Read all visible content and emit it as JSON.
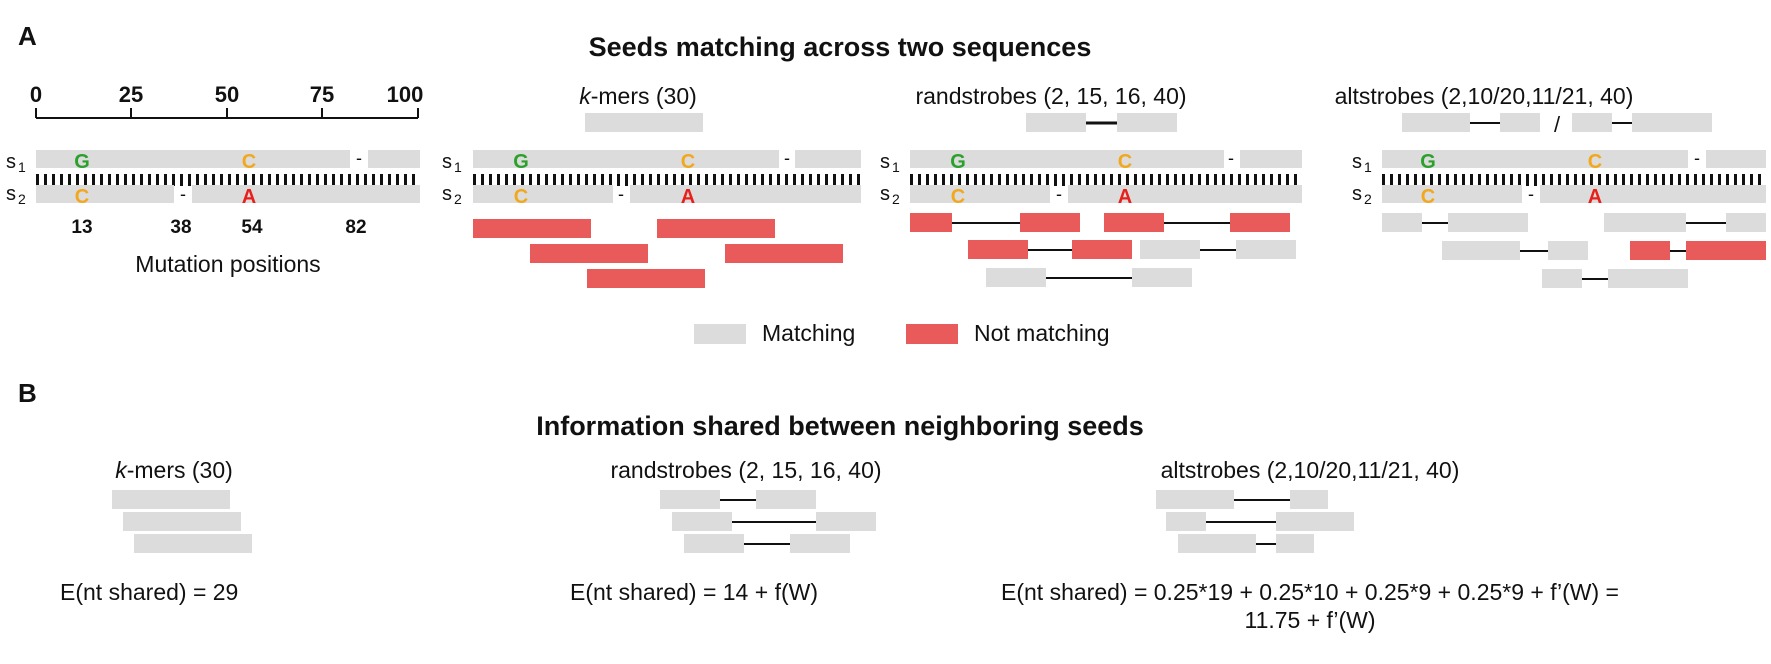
{
  "panel_a": {
    "letter": "A",
    "title": "Seeds matching across two sequences",
    "axis_ticks": [
      "0",
      "25",
      "50",
      "75",
      "100"
    ],
    "seq_labels": {
      "s1": "s",
      "s1_sub": "1",
      "s2": "s",
      "s2_sub": "2"
    },
    "s1_letters": [
      "G",
      "C"
    ],
    "s2_letters": [
      "C",
      "A"
    ],
    "gap_mark": "-",
    "mutation_positions": [
      "13",
      "38",
      "54",
      "82"
    ],
    "mutation_caption": "Mutation positions",
    "kmers_label_italic": "k",
    "kmers_label_rest": "-mers (30)",
    "randstrobes_label": "randstrobes (2, 15, 16, 40)",
    "altstrobes_label": "altstrobes (2,10/20,11/21, 40)",
    "alt_slash": "/",
    "legend": {
      "matching": "Matching",
      "not_matching": "Not matching"
    }
  },
  "panel_b": {
    "letter": "B",
    "title": "Information shared between neighboring seeds",
    "kmers_label_italic": "k",
    "kmers_label_rest": "-mers (30)",
    "randstrobes_label": "randstrobes (2, 15, 16, 40)",
    "altstrobes_label": "altstrobes (2,10/20,11/21, 40)",
    "kmers_eq": "E(nt shared) = 29",
    "randstrobes_eq": "E(nt shared) = 14 + f(W)",
    "altstrobes_eq_line1": "E(nt shared) = 0.25*19 + 0.25*10 + 0.25*9 + 0.25*9 + f’(W) =",
    "altstrobes_eq_line2": "11.75 + f’(W)"
  },
  "colors": {
    "matching": "#dcdcdc",
    "not_matching": "#e95a5a",
    "letter_green": "#2ca02c",
    "letter_orange": "#f2a81d",
    "letter_red": "#e8201c"
  }
}
